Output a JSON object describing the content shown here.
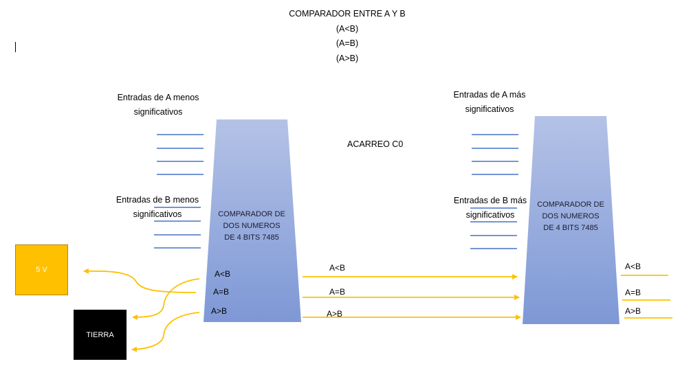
{
  "title": {
    "line1": "COMPARADOR ENTRE A Y B",
    "line2": "(A<B)",
    "line3": "(A=B)",
    "line4": "(A>B)"
  },
  "left_chip": {
    "a_inputs_line1": "Entradas de A menos",
    "a_inputs_line2": "significativos",
    "b_inputs_line1": "Entradas de B menos",
    "b_inputs_line2": "significativos",
    "label": [
      "COMPARADOR DE",
      "DOS NUMEROS",
      "DE 4 BITS 7485"
    ],
    "pin_lt": "A<B",
    "pin_eq": "A=B",
    "pin_gt": "A>B"
  },
  "right_chip": {
    "a_inputs_line1": "Entradas de A más",
    "a_inputs_line2": "significativos",
    "b_inputs_line1": "Entradas de B más",
    "b_inputs_line2": "significativos",
    "label": [
      "COMPARADOR DE",
      "DOS NUMEROS",
      "DE 4 BITS 7485"
    ],
    "out_lt": "A<B",
    "out_eq": "A=B",
    "out_gt": "A>B"
  },
  "carry_label": "ACARREO C0",
  "wire_labels": {
    "lt": "A<B",
    "eq": "A=B",
    "gt": "A>B"
  },
  "power_box": {
    "label": "5 V",
    "color": "#ffc000"
  },
  "ground_box": {
    "label": "TIERRA",
    "color": "#000000"
  },
  "colors": {
    "input_lines": "#4472c4",
    "signal_wires": "#ffc000",
    "chip_top": "#b4c2e6",
    "chip_bottom": "#7e98d6"
  }
}
